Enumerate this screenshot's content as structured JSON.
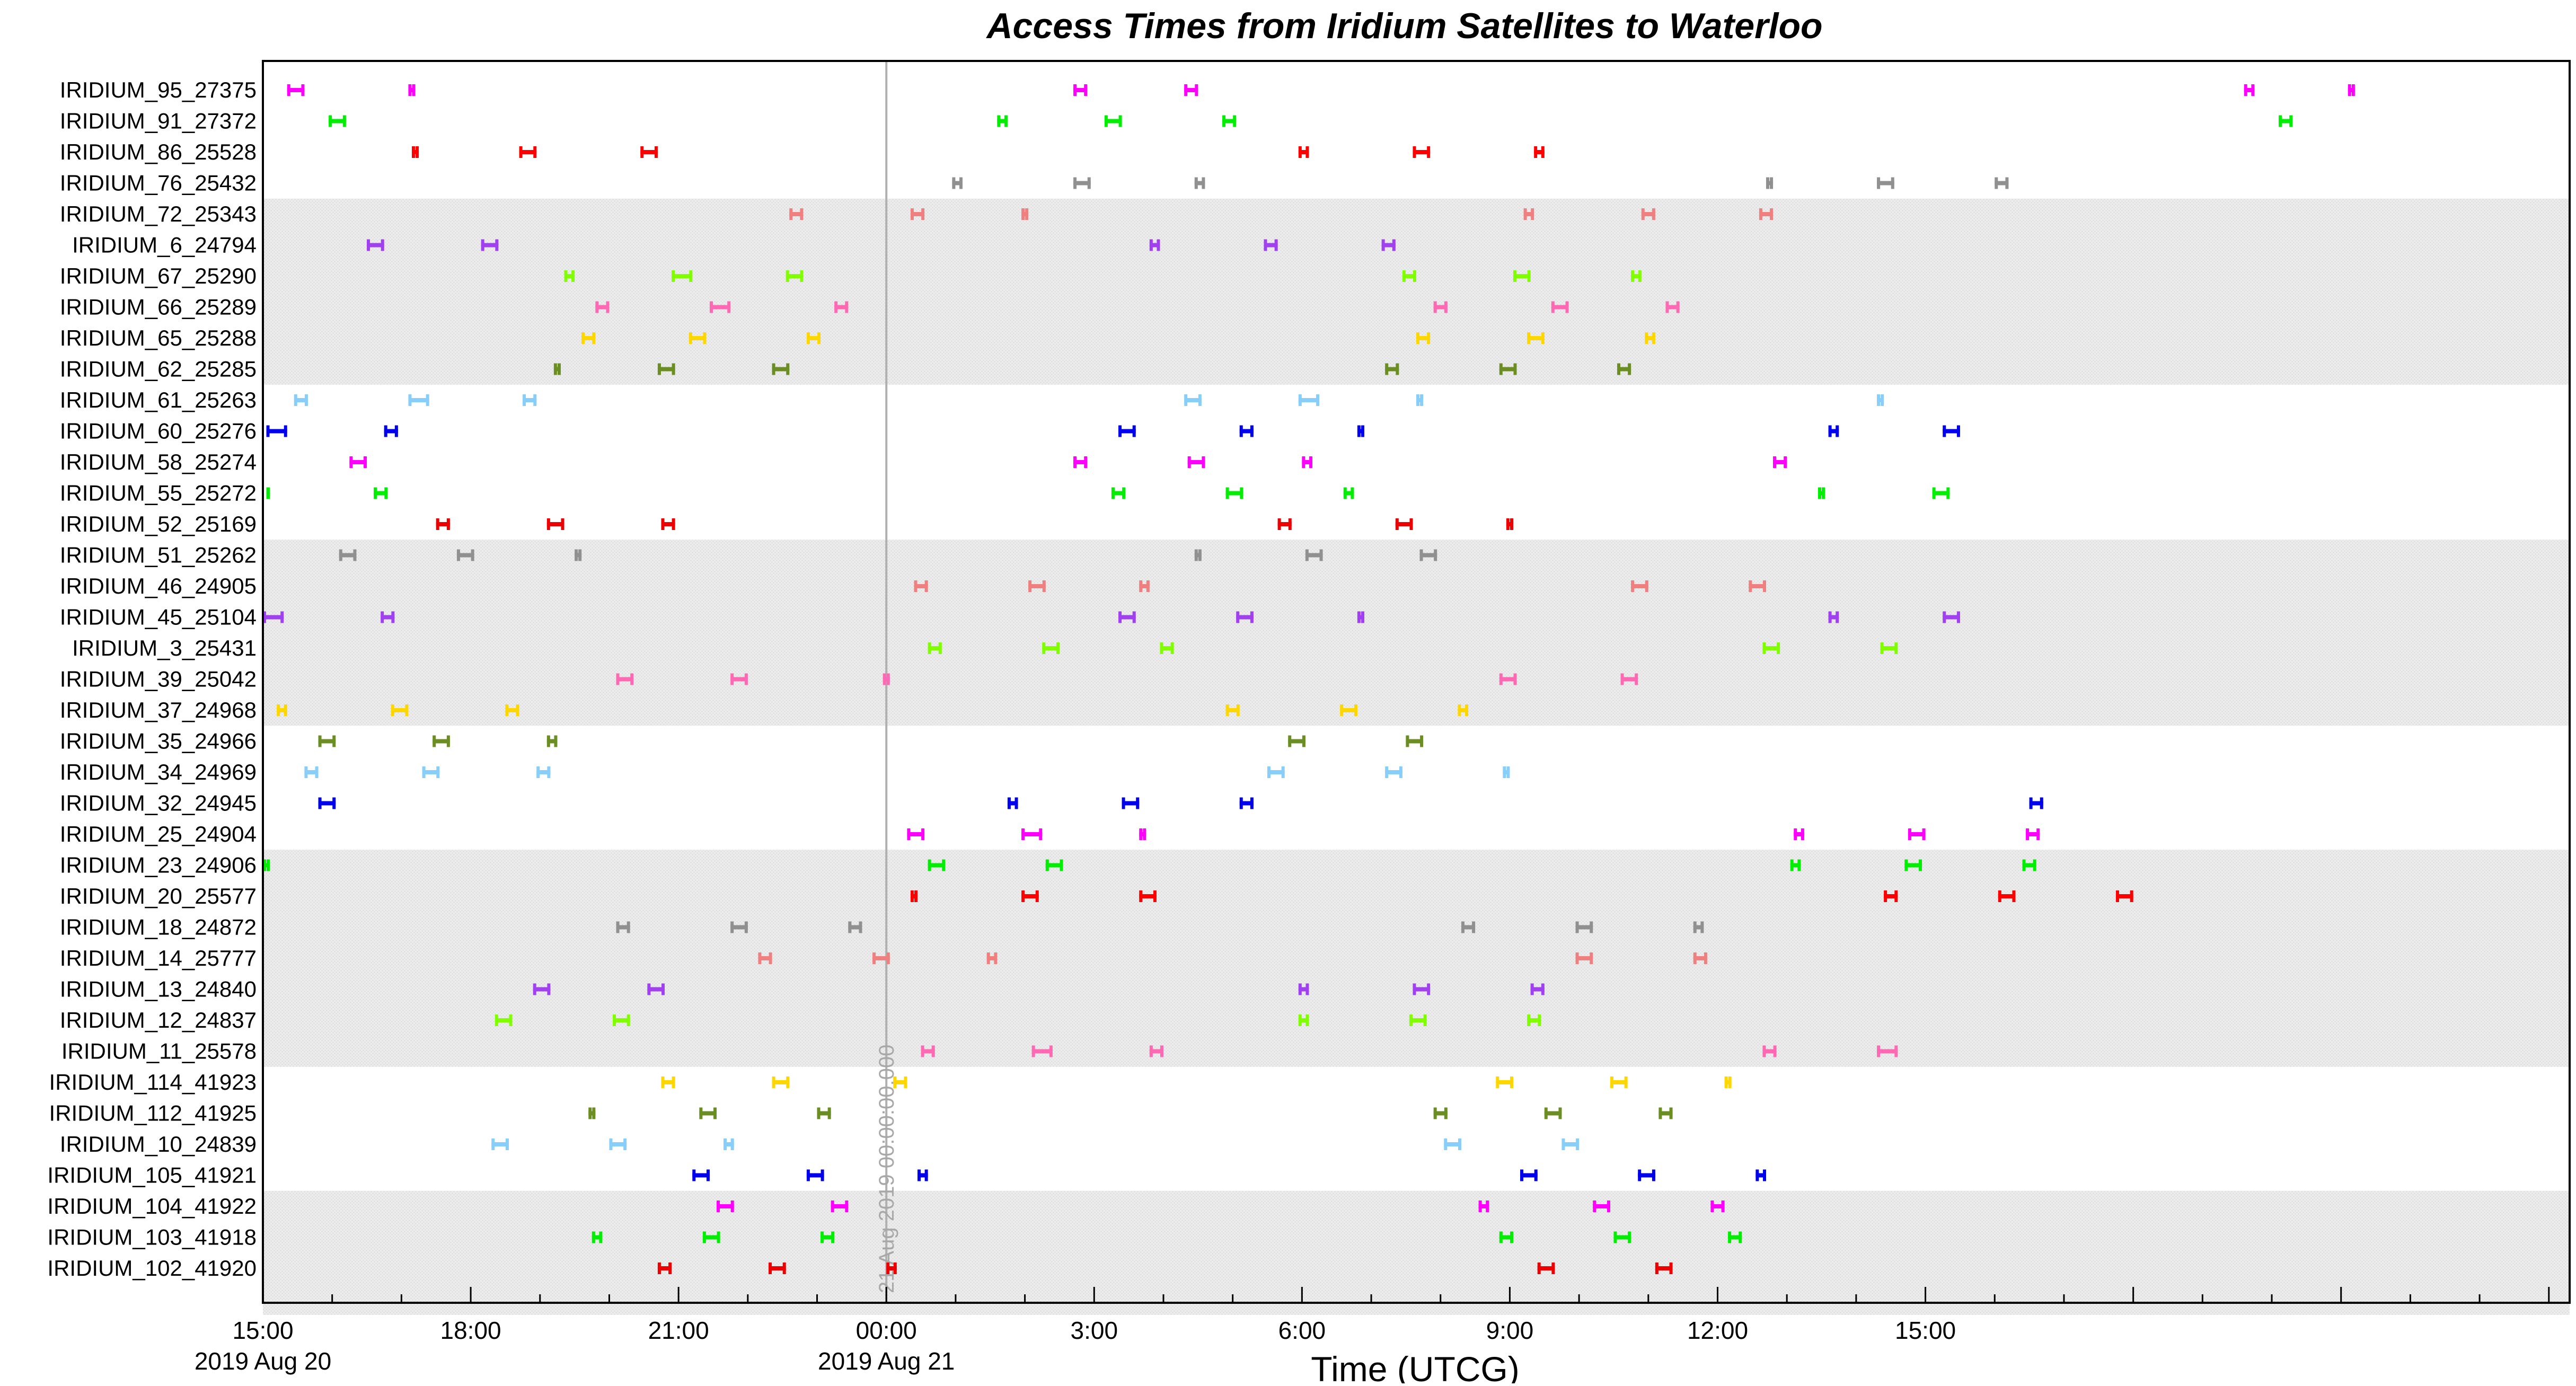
{
  "chart_data": {
    "type": "gantt",
    "title": "Access Times from Iridium Satellites to Waterloo",
    "xlabel": "Time (UTCG)",
    "x_range_hours": [
      15.0,
      48.3
    ],
    "x_ticks": [
      {
        "hour": 15,
        "label": "15:00",
        "date": "2019 Aug 20"
      },
      {
        "hour": 18,
        "label": "18:00",
        "date": ""
      },
      {
        "hour": 21,
        "label": "21:00",
        "date": ""
      },
      {
        "hour": 24,
        "label": "00:00",
        "date": "2019 Aug 21"
      },
      {
        "hour": 27,
        "label": "3:00",
        "date": ""
      },
      {
        "hour": 30,
        "label": "6:00",
        "date": ""
      },
      {
        "hour": 33,
        "label": "9:00",
        "date": ""
      },
      {
        "hour": 36,
        "label": "12:00",
        "date": ""
      },
      {
        "hour": 39,
        "label": "15:00",
        "date": ""
      }
    ],
    "marker": {
      "hour": 24,
      "label": "21 Aug 2019 00:00:00.000"
    },
    "shaded_bands": [
      [
        4,
        9
      ],
      [
        15,
        20
      ],
      [
        25,
        31
      ],
      [
        36,
        39
      ]
    ],
    "satellites": [
      {
        "name": "IRIDIUM_95_27375",
        "color": "#ff00ff",
        "passes": [
          [
            15.35,
            15.6
          ],
          [
            17.1,
            17.2
          ],
          [
            26.7,
            26.9
          ],
          [
            28.3,
            28.5
          ],
          [
            43.6,
            43.75
          ],
          [
            45.1,
            45.2
          ]
        ]
      },
      {
        "name": "IRIDIUM_91_27372",
        "color": "#00ee00",
        "passes": [
          [
            15.95,
            16.2
          ],
          [
            25.6,
            25.75
          ],
          [
            27.15,
            27.4
          ],
          [
            28.85,
            29.05
          ],
          [
            44.1,
            44.3
          ]
        ]
      },
      {
        "name": "IRIDIUM_86_25528",
        "color": "#ff0000",
        "passes": [
          [
            17.15,
            17.25
          ],
          [
            18.7,
            18.95
          ],
          [
            20.45,
            20.7
          ],
          [
            29.95,
            30.1
          ],
          [
            31.6,
            31.85
          ],
          [
            33.35,
            33.5
          ]
        ]
      },
      {
        "name": "IRIDIUM_76_25432",
        "color": "#909090",
        "passes": [
          [
            24.95,
            25.1
          ],
          [
            26.7,
            26.95
          ],
          [
            28.45,
            28.6
          ],
          [
            36.7,
            36.8
          ],
          [
            38.3,
            38.55
          ],
          [
            40.0,
            40.2
          ]
        ]
      },
      {
        "name": "IRIDIUM_72_25343",
        "color": "#f08080",
        "passes": [
          [
            22.6,
            22.8
          ],
          [
            24.35,
            24.55
          ],
          [
            25.95,
            26.05
          ],
          [
            33.2,
            33.35
          ],
          [
            34.9,
            35.1
          ],
          [
            36.6,
            36.8
          ]
        ]
      },
      {
        "name": "IRIDIUM_6_24794",
        "color": "#a040f0",
        "passes": [
          [
            16.5,
            16.75
          ],
          [
            18.15,
            18.4
          ],
          [
            27.8,
            27.95
          ],
          [
            29.45,
            29.65
          ],
          [
            31.15,
            31.35
          ]
        ]
      },
      {
        "name": "IRIDIUM_67_25290",
        "color": "#80ff00",
        "passes": [
          [
            19.35,
            19.5
          ],
          [
            20.9,
            21.2
          ],
          [
            22.55,
            22.8
          ],
          [
            31.45,
            31.65
          ],
          [
            33.05,
            33.3
          ],
          [
            34.75,
            34.9
          ]
        ]
      },
      {
        "name": "IRIDIUM_66_25289",
        "color": "#ff69b4",
        "passes": [
          [
            19.8,
            20.0
          ],
          [
            21.45,
            21.75
          ],
          [
            23.25,
            23.45
          ],
          [
            31.9,
            32.1
          ],
          [
            33.6,
            33.85
          ],
          [
            35.25,
            35.45
          ]
        ]
      },
      {
        "name": "IRIDIUM_65_25288",
        "color": "#ffd700",
        "passes": [
          [
            19.6,
            19.8
          ],
          [
            21.15,
            21.4
          ],
          [
            22.85,
            23.05
          ],
          [
            31.65,
            31.85
          ],
          [
            33.25,
            33.5
          ],
          [
            34.95,
            35.1
          ]
        ]
      },
      {
        "name": "IRIDIUM_62_25285",
        "color": "#6b8e23",
        "passes": [
          [
            19.2,
            19.3
          ],
          [
            20.7,
            20.95
          ],
          [
            22.35,
            22.6
          ],
          [
            31.2,
            31.4
          ],
          [
            32.85,
            33.1
          ],
          [
            34.55,
            34.75
          ]
        ]
      },
      {
        "name": "IRIDIUM_61_25263",
        "color": "#87cefa",
        "passes": [
          [
            15.45,
            15.65
          ],
          [
            17.1,
            17.4
          ],
          [
            18.75,
            18.95
          ],
          [
            28.3,
            28.55
          ],
          [
            29.95,
            30.25
          ],
          [
            31.65,
            31.75
          ],
          [
            38.3,
            38.4
          ]
        ]
      },
      {
        "name": "IRIDIUM_60_25276",
        "color": "#0000ee",
        "passes": [
          [
            15.05,
            15.35
          ],
          [
            16.75,
            16.95
          ],
          [
            27.35,
            27.6
          ],
          [
            29.1,
            29.3
          ],
          [
            30.8,
            30.9
          ],
          [
            37.6,
            37.75
          ],
          [
            39.25,
            39.5
          ]
        ]
      },
      {
        "name": "IRIDIUM_58_25274",
        "color": "#ff00ff",
        "passes": [
          [
            16.25,
            16.5
          ],
          [
            26.7,
            26.9
          ],
          [
            28.35,
            28.6
          ],
          [
            30.0,
            30.15
          ],
          [
            36.8,
            37.0
          ]
        ]
      },
      {
        "name": "IRIDIUM_55_25272",
        "color": "#00ee00",
        "passes": [
          [
            15.05,
            15.1
          ],
          [
            16.6,
            16.8
          ],
          [
            27.25,
            27.45
          ],
          [
            28.9,
            29.15
          ],
          [
            30.6,
            30.75
          ],
          [
            37.45,
            37.55
          ],
          [
            39.1,
            39.35
          ]
        ]
      },
      {
        "name": "IRIDIUM_52_25169",
        "color": "#ee0000",
        "passes": [
          [
            17.5,
            17.7
          ],
          [
            19.1,
            19.35
          ],
          [
            20.75,
            20.95
          ],
          [
            29.65,
            29.85
          ],
          [
            31.35,
            31.6
          ],
          [
            32.95,
            33.05
          ]
        ]
      },
      {
        "name": "IRIDIUM_51_25262",
        "color": "#909090",
        "passes": [
          [
            16.1,
            16.35
          ],
          [
            17.8,
            18.05
          ],
          [
            19.5,
            19.6
          ],
          [
            28.45,
            28.55
          ],
          [
            30.05,
            30.3
          ],
          [
            31.7,
            31.95
          ]
        ]
      },
      {
        "name": "IRIDIUM_46_24905",
        "color": "#f08080",
        "passes": [
          [
            24.4,
            24.6
          ],
          [
            26.05,
            26.3
          ],
          [
            27.65,
            27.8
          ],
          [
            34.75,
            35.0
          ],
          [
            36.45,
            36.7
          ]
        ]
      },
      {
        "name": "IRIDIUM_45_25104",
        "color": "#a040f0",
        "passes": [
          [
            15.0,
            15.3
          ],
          [
            16.7,
            16.9
          ],
          [
            27.35,
            27.6
          ],
          [
            29.05,
            29.3
          ],
          [
            30.8,
            30.9
          ],
          [
            37.6,
            37.75
          ],
          [
            39.25,
            39.5
          ]
        ]
      },
      {
        "name": "IRIDIUM_3_25431",
        "color": "#80ff00",
        "passes": [
          [
            24.6,
            24.8
          ],
          [
            26.25,
            26.5
          ],
          [
            27.95,
            28.15
          ],
          [
            36.65,
            36.9
          ],
          [
            38.35,
            38.6
          ]
        ]
      },
      {
        "name": "IRIDIUM_39_25042",
        "color": "#ff69b4",
        "passes": [
          [
            20.1,
            20.35
          ],
          [
            21.75,
            22.0
          ],
          [
            23.95,
            24.05
          ],
          [
            32.85,
            33.1
          ],
          [
            34.6,
            34.85
          ]
        ]
      },
      {
        "name": "IRIDIUM_37_24968",
        "color": "#ffd700",
        "passes": [
          [
            15.2,
            15.35
          ],
          [
            16.85,
            17.1
          ],
          [
            18.5,
            18.7
          ],
          [
            28.9,
            29.1
          ],
          [
            30.55,
            30.8
          ],
          [
            32.25,
            32.4
          ]
        ]
      },
      {
        "name": "IRIDIUM_35_24966",
        "color": "#6b8e23",
        "passes": [
          [
            15.8,
            16.05
          ],
          [
            17.45,
            17.7
          ],
          [
            19.1,
            19.25
          ],
          [
            29.8,
            30.05
          ],
          [
            31.5,
            31.75
          ]
        ]
      },
      {
        "name": "IRIDIUM_34_24969",
        "color": "#87cefa",
        "passes": [
          [
            15.6,
            15.8
          ],
          [
            17.3,
            17.55
          ],
          [
            18.95,
            19.15
          ],
          [
            29.5,
            29.75
          ],
          [
            31.2,
            31.45
          ],
          [
            32.9,
            33.0
          ]
        ]
      },
      {
        "name": "IRIDIUM_32_24945",
        "color": "#0000ee",
        "passes": [
          [
            15.8,
            16.05
          ],
          [
            25.75,
            25.9
          ],
          [
            27.4,
            27.65
          ],
          [
            29.1,
            29.3
          ],
          [
            40.5,
            40.7
          ]
        ]
      },
      {
        "name": "IRIDIUM_25_24904",
        "color": "#ff00ff",
        "passes": [
          [
            24.3,
            24.55
          ],
          [
            25.95,
            26.25
          ],
          [
            27.65,
            27.75
          ],
          [
            37.1,
            37.25
          ],
          [
            38.75,
            39.0
          ],
          [
            40.45,
            40.65
          ]
        ]
      },
      {
        "name": "IRIDIUM_23_24906",
        "color": "#00ee00",
        "passes": [
          [
            15.0,
            15.1
          ],
          [
            24.6,
            24.85
          ],
          [
            26.3,
            26.55
          ],
          [
            37.05,
            37.2
          ],
          [
            38.7,
            38.95
          ],
          [
            40.4,
            40.6
          ]
        ]
      },
      {
        "name": "IRIDIUM_20_25577",
        "color": "#ff0000",
        "passes": [
          [
            24.35,
            24.45
          ],
          [
            25.95,
            26.2
          ],
          [
            27.65,
            27.9
          ],
          [
            38.4,
            38.6
          ],
          [
            40.05,
            40.3
          ],
          [
            41.75,
            42.0
          ]
        ]
      },
      {
        "name": "IRIDIUM_18_24872",
        "color": "#909090",
        "passes": [
          [
            20.1,
            20.3
          ],
          [
            21.75,
            22.0
          ],
          [
            23.45,
            23.65
          ],
          [
            32.3,
            32.5
          ],
          [
            33.95,
            34.2
          ],
          [
            35.65,
            35.8
          ]
        ]
      },
      {
        "name": "IRIDIUM_14_25777",
        "color": "#f08080",
        "passes": [
          [
            22.15,
            22.35
          ],
          [
            23.8,
            24.05
          ],
          [
            25.45,
            25.6
          ],
          [
            33.95,
            34.2
          ],
          [
            35.65,
            35.85
          ]
        ]
      },
      {
        "name": "IRIDIUM_13_24840",
        "color": "#a040f0",
        "passes": [
          [
            18.9,
            19.15
          ],
          [
            20.55,
            20.8
          ],
          [
            29.95,
            30.1
          ],
          [
            31.6,
            31.85
          ],
          [
            33.3,
            33.5
          ]
        ]
      },
      {
        "name": "IRIDIUM_12_24837",
        "color": "#80ff00",
        "passes": [
          [
            18.35,
            18.6
          ],
          [
            20.05,
            20.3
          ],
          [
            29.95,
            30.1
          ],
          [
            31.55,
            31.8
          ],
          [
            33.25,
            33.45
          ]
        ]
      },
      {
        "name": "IRIDIUM_11_25578",
        "color": "#ff69b4",
        "passes": [
          [
            24.5,
            24.7
          ],
          [
            26.1,
            26.4
          ],
          [
            27.8,
            28.0
          ],
          [
            36.65,
            36.85
          ],
          [
            38.3,
            38.6
          ]
        ]
      },
      {
        "name": "IRIDIUM_114_41923",
        "color": "#ffd700",
        "passes": [
          [
            20.75,
            20.95
          ],
          [
            22.35,
            22.6
          ],
          [
            24.1,
            24.3
          ],
          [
            32.8,
            33.05
          ],
          [
            34.45,
            34.7
          ],
          [
            36.1,
            36.2
          ]
        ]
      },
      {
        "name": "IRIDIUM_112_41925",
        "color": "#6b8e23",
        "passes": [
          [
            19.7,
            19.8
          ],
          [
            21.3,
            21.55
          ],
          [
            23.0,
            23.2
          ],
          [
            31.9,
            32.1
          ],
          [
            33.5,
            33.75
          ],
          [
            35.15,
            35.35
          ]
        ]
      },
      {
        "name": "IRIDIUM_10_24839",
        "color": "#87cefa",
        "passes": [
          [
            18.3,
            18.55
          ],
          [
            20.0,
            20.25
          ],
          [
            21.65,
            21.8
          ],
          [
            32.05,
            32.3
          ],
          [
            33.75,
            34.0
          ]
        ]
      },
      {
        "name": "IRIDIUM_105_41921",
        "color": "#0000ee",
        "passes": [
          [
            21.2,
            21.45
          ],
          [
            22.85,
            23.1
          ],
          [
            24.45,
            24.6
          ],
          [
            33.15,
            33.4
          ],
          [
            34.85,
            35.1
          ],
          [
            36.55,
            36.7
          ]
        ]
      },
      {
        "name": "IRIDIUM_104_41922",
        "color": "#ff00ff",
        "passes": [
          [
            21.55,
            21.8
          ],
          [
            23.2,
            23.45
          ],
          [
            32.55,
            32.7
          ],
          [
            34.2,
            34.45
          ],
          [
            35.9,
            36.1
          ]
        ]
      },
      {
        "name": "IRIDIUM_103_41918",
        "color": "#00ee00",
        "passes": [
          [
            19.75,
            19.9
          ],
          [
            21.35,
            21.6
          ],
          [
            23.05,
            23.25
          ],
          [
            32.85,
            33.05
          ],
          [
            34.5,
            34.75
          ],
          [
            36.15,
            36.35
          ]
        ]
      },
      {
        "name": "IRIDIUM_102_41920",
        "color": "#ee0000",
        "passes": [
          [
            20.7,
            20.9
          ],
          [
            22.3,
            22.55
          ],
          [
            24.0,
            24.15
          ],
          [
            33.4,
            33.65
          ],
          [
            35.1,
            35.35
          ]
        ]
      }
    ]
  }
}
